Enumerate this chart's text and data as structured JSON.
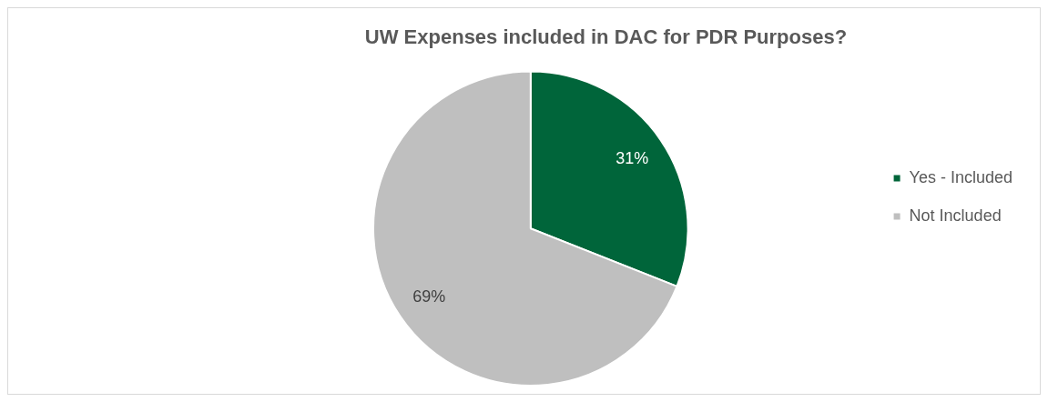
{
  "chart_data": {
    "type": "pie",
    "title": "UW Expenses included in DAC for PDR Purposes?",
    "categories": [
      "Yes - Included",
      "Not Included"
    ],
    "values": [
      31,
      69
    ],
    "colors": [
      "#00653a",
      "#bfbfbf"
    ],
    "value_labels": [
      "31%",
      "69%"
    ],
    "legend": "right"
  }
}
